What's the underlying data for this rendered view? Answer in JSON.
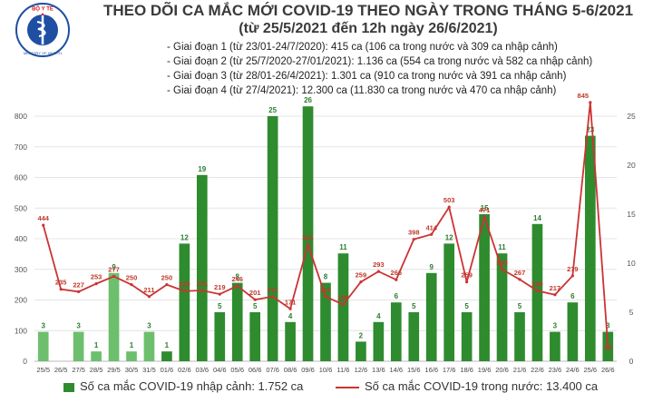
{
  "title": "THEO DÕI CA MẮC MỚI COVID-19 THEO NGÀY TRONG THÁNG 5-6/2021",
  "subtitle": "(từ 25/5/2021 đến 12h ngày 26/6/2021)",
  "logo": {
    "text": "BỘ Y TẾ",
    "subtext": "MINISTRY OF HEALTH"
  },
  "phases": [
    "- Giai đoạn 1 (từ 23/01-24/7/2020): 415 ca (106 ca trong nước và 309 ca nhập cảnh)",
    "- Giai đoạn 2 (từ 25/7/2020-27/01/2021): 1.136 ca (554 ca trong nước và 582 ca nhập cảnh)",
    "- Giai đoạn 3 (từ 28/01-26/4/2021): 1.301 ca (910 ca trong nước và 391 ca nhập cảnh)",
    "- Giai đoạn 4 (từ 27/4/2021): 12.300 ca (11.830 ca trong nước và 470 ca nhập cảnh)"
  ],
  "colors": {
    "bar_light": "#6dbf6d",
    "bar_dark": "#2e8b2e",
    "line": "#cc3333",
    "grid": "#e4e4e4",
    "text": "#3a3a3a"
  },
  "chart_data": {
    "type": "bar+line",
    "categories": [
      "25/5",
      "26/5",
      "27/5",
      "28/5",
      "29/5",
      "30/5",
      "31/5",
      "01/6",
      "02/6",
      "03/6",
      "04/6",
      "05/6",
      "06/6",
      "07/6",
      "08/6",
      "09/6",
      "10/6",
      "11/6",
      "12/6",
      "13/6",
      "14/6",
      "15/6",
      "16/6",
      "17/6",
      "18/6",
      "19/6",
      "20/6",
      "21/6",
      "22/6",
      "23/6",
      "24/6",
      "25/6",
      "26/6"
    ],
    "y_left_ticks": [
      "0",
      "100",
      "200",
      "300",
      "400",
      "500",
      "600",
      "700",
      "800"
    ],
    "y_left_lim": [
      0,
      800
    ],
    "y_right_ticks": [
      "0",
      "5",
      "10",
      "15",
      "20",
      "25"
    ],
    "y_right_lim": [
      0,
      25
    ],
    "series": [
      {
        "name": "Số ca mắc COVID-19 nhập cảnh: 1.752 ca",
        "kind": "bar",
        "axis": "right",
        "values": [
          3,
          null,
          3,
          1,
          9,
          1,
          3,
          1,
          12,
          19,
          5,
          8,
          5,
          25,
          4,
          26,
          8,
          11,
          2,
          4,
          6,
          5,
          9,
          12,
          5,
          15,
          11,
          5,
          14,
          3,
          6,
          23,
          3
        ],
        "labels": [
          "3",
          "",
          "3",
          "1",
          "9",
          "1",
          "3",
          "1",
          "12",
          "19",
          "5",
          "8",
          "5",
          "25",
          "4",
          "26",
          "8",
          "11",
          "2",
          "4",
          "6",
          "5",
          "9",
          "12",
          "5",
          "15",
          "11",
          "5",
          "14",
          "3",
          "6",
          "23",
          "3"
        ]
      },
      {
        "name": "Số ca mắc COVID-19 trong nước: 13.400 ca",
        "kind": "line",
        "axis": "left",
        "values": [
          444,
          235,
          227,
          253,
          277,
          250,
          211,
          250,
          229,
          231,
          219,
          246,
          201,
          211,
          171,
          381,
          211,
          185,
          259,
          293,
          266,
          398,
          414,
          503,
          259,
          471,
          300,
          267,
          230,
          217,
          279,
          845,
          49
        ],
        "labels": [
          "444",
          "235",
          "227",
          "253",
          "277",
          "250",
          "211",
          "250",
          "229",
          "231",
          "219",
          "246",
          "201",
          "211",
          "171",
          "381",
          "211",
          "185",
          "259",
          "293",
          "266",
          "398",
          "414",
          "503",
          "259",
          "471",
          "300",
          "267",
          "230",
          "217",
          "279",
          "845",
          "49"
        ]
      }
    ]
  }
}
